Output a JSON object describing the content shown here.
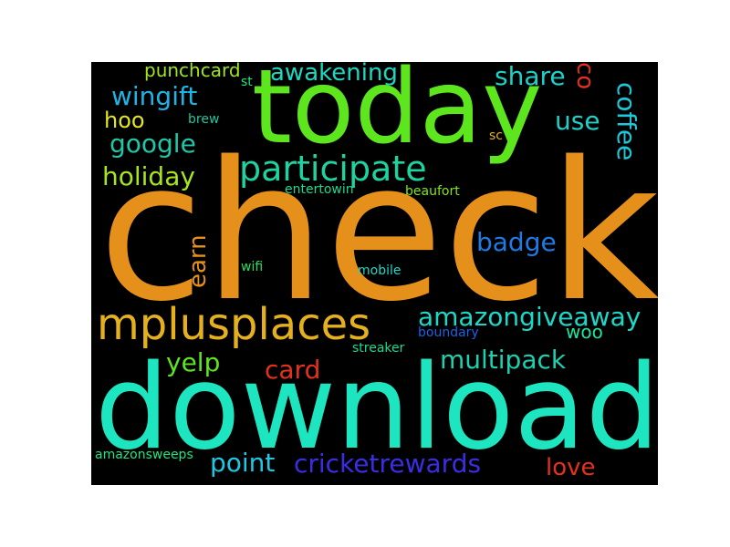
{
  "words": [
    {
      "text": "check",
      "color": "#E5901A"
    },
    {
      "text": "download",
      "color": "#1DE5C0"
    },
    {
      "text": "today",
      "color": "#5DE51D"
    },
    {
      "text": "mplusplaces",
      "color": "#E5B01D"
    },
    {
      "text": "participate",
      "color": "#1DD3A0"
    },
    {
      "text": "amazongiveaway",
      "color": "#1DD8C8"
    },
    {
      "text": "multipack",
      "color": "#1DD0B0"
    },
    {
      "text": "cricketrewards",
      "color": "#3A2DE5"
    },
    {
      "text": "wingift",
      "color": "#1DB5E5"
    },
    {
      "text": "awakening",
      "color": "#1DD8C0"
    },
    {
      "text": "google",
      "color": "#1DC8A8"
    },
    {
      "text": "holiday",
      "color": "#A8E51D"
    },
    {
      "text": "badge",
      "color": "#1D7BE5"
    },
    {
      "text": "share",
      "color": "#1DD0C8"
    },
    {
      "text": "coffee",
      "color": "#1DC8D8"
    },
    {
      "text": "use",
      "color": "#1DD0C8"
    },
    {
      "text": "co",
      "color": "#E5301D"
    },
    {
      "text": "hoo",
      "color": "#E5E51D"
    },
    {
      "text": "punchcard",
      "color": "#A0E51D"
    },
    {
      "text": "earn",
      "color": "#E5901A"
    },
    {
      "text": "card",
      "color": "#E5301D"
    },
    {
      "text": "yelp",
      "color": "#5DE51D"
    },
    {
      "text": "point",
      "color": "#1DC8E5"
    },
    {
      "text": "love",
      "color": "#E5301D"
    },
    {
      "text": "woo",
      "color": "#1DE5A0"
    },
    {
      "text": "st",
      "color": "#1DE580"
    },
    {
      "text": "brew",
      "color": "#1DC8A0"
    },
    {
      "text": "sc",
      "color": "#E5B01D"
    },
    {
      "text": "entertowin",
      "color": "#1DD890"
    },
    {
      "text": "beaufort",
      "color": "#80E51D"
    },
    {
      "text": "wifi",
      "color": "#1DE560"
    },
    {
      "text": "mobile",
      "color": "#1DD8C8"
    },
    {
      "text": "boundary",
      "color": "#1D60E5"
    },
    {
      "text": "streaker",
      "color": "#1DD890"
    },
    {
      "text": "amazonsweeps",
      "color": "#1DE580"
    }
  ]
}
